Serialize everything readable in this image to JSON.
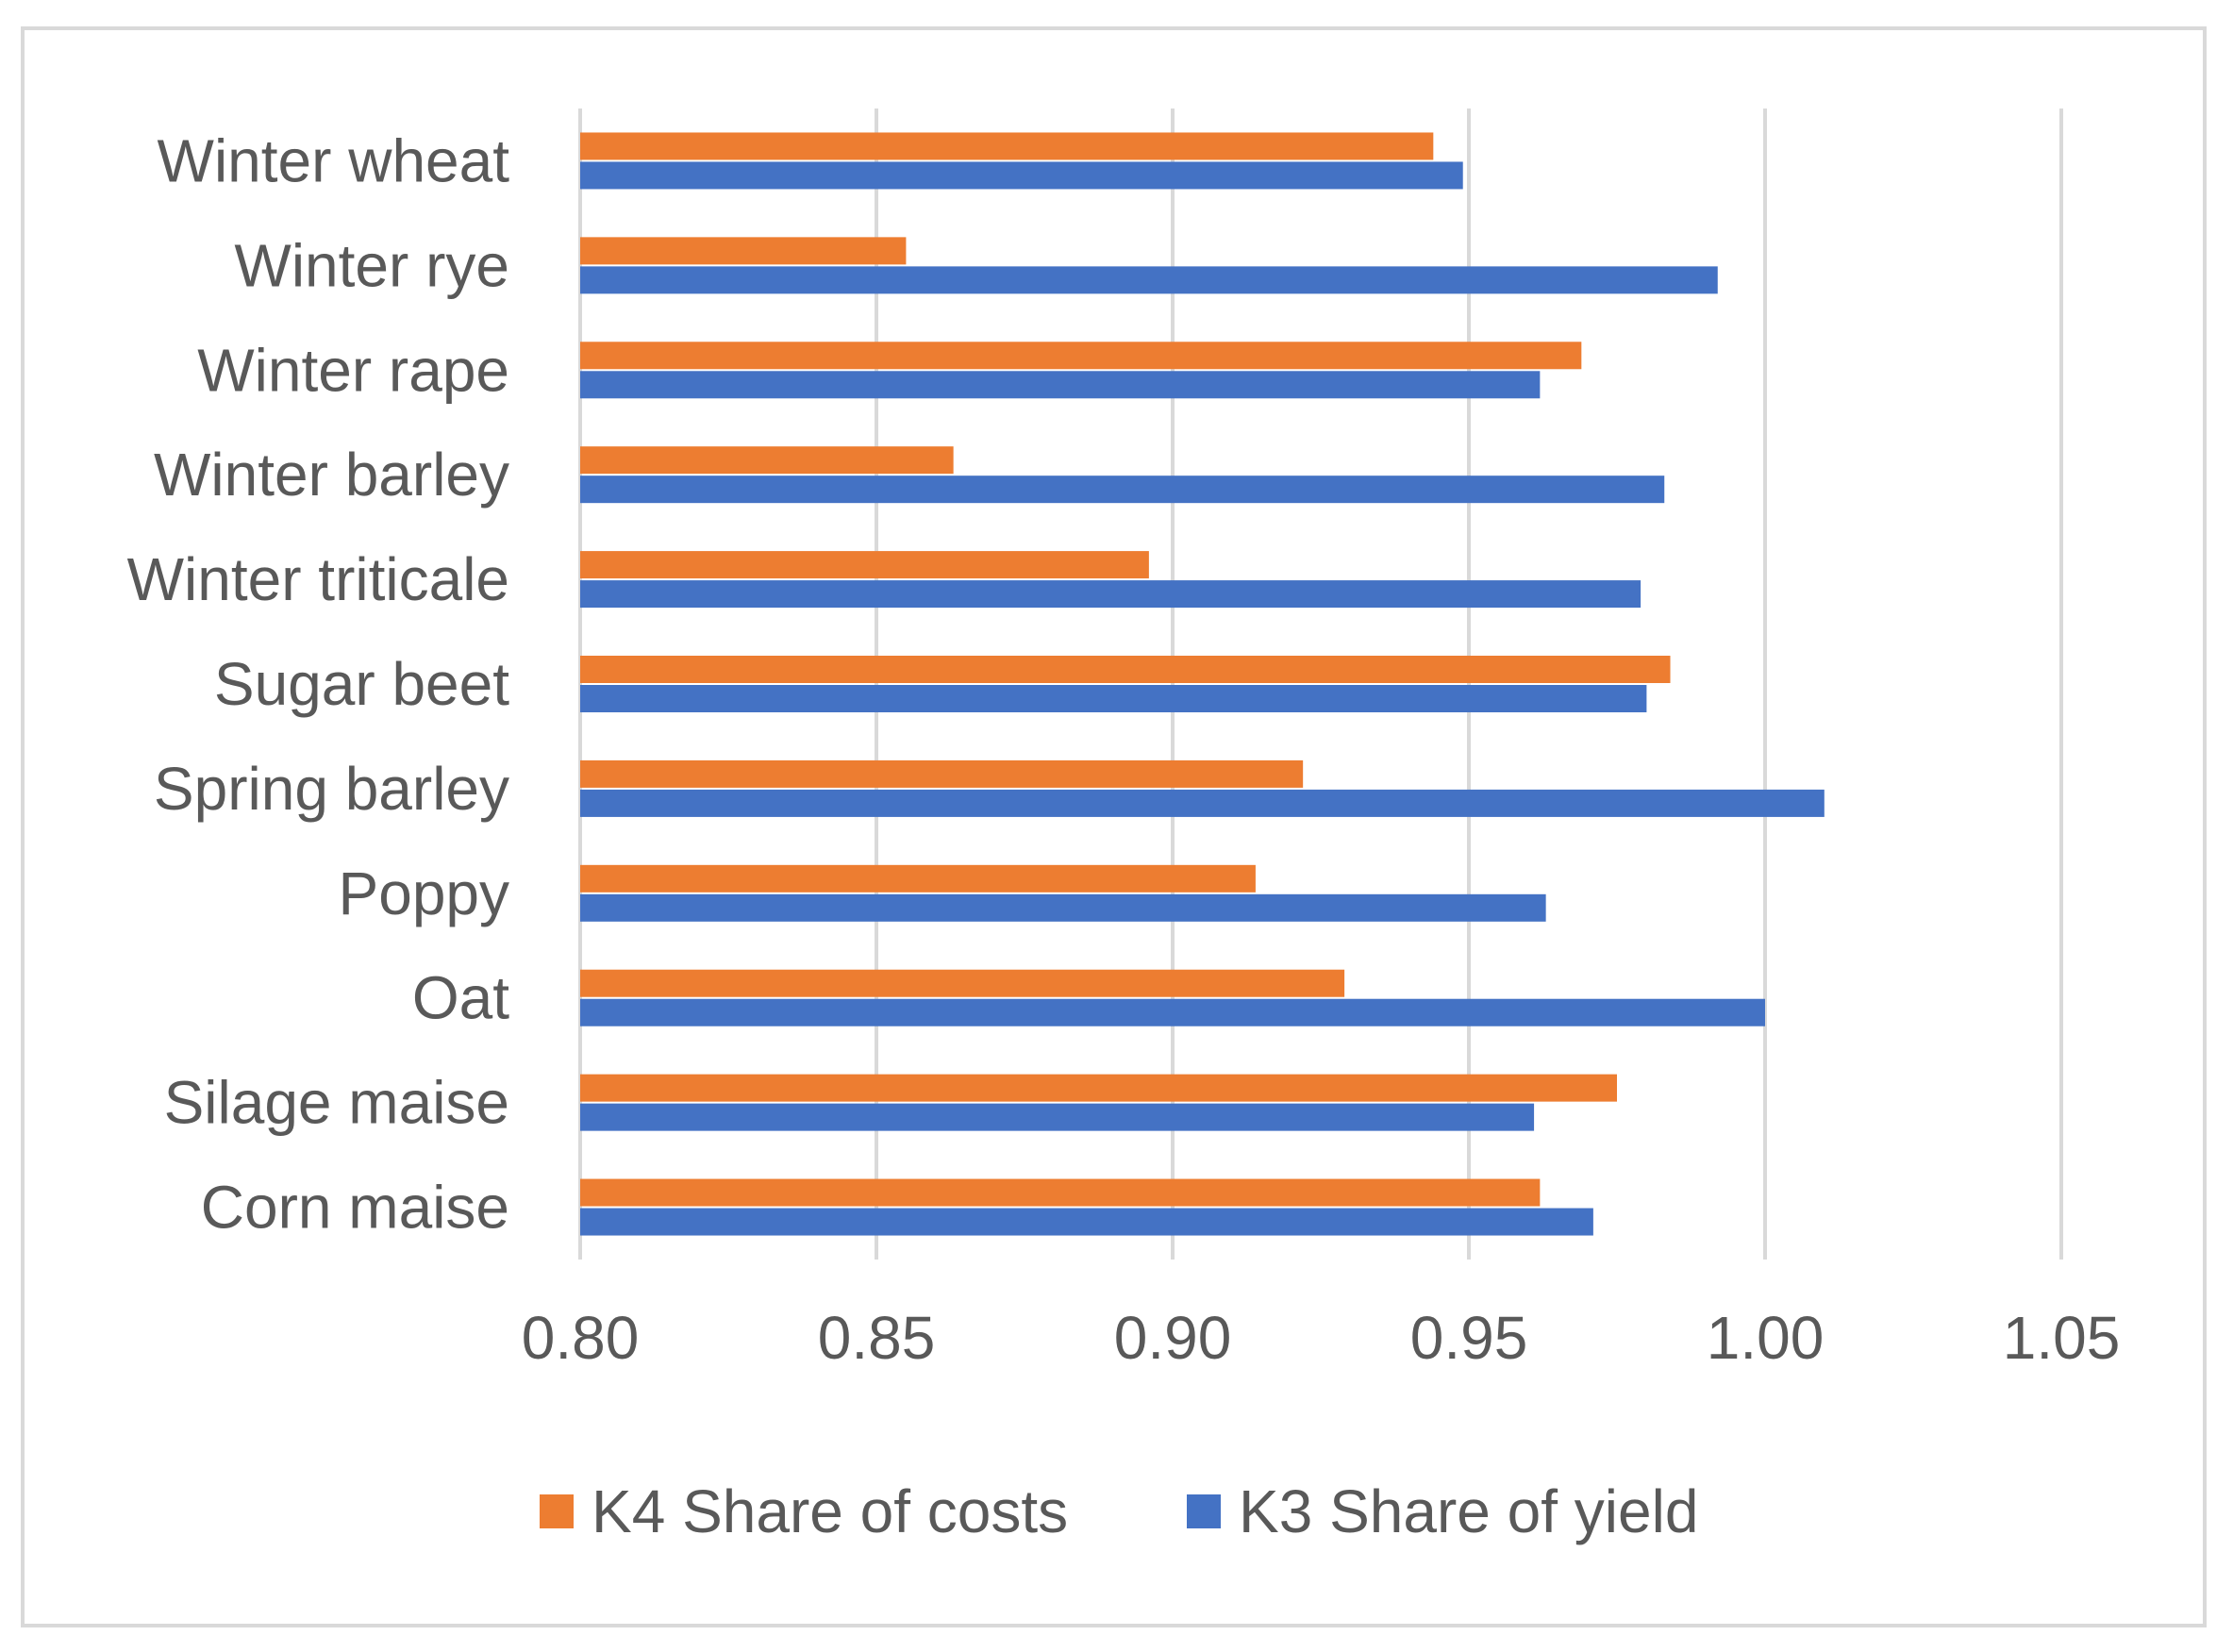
{
  "chart_data": {
    "type": "bar",
    "orientation": "horizontal",
    "title": "",
    "xlabel": "",
    "ylabel": "",
    "xlim": [
      0.8,
      1.05
    ],
    "ticks": [
      "0.80",
      "0.85",
      "0.90",
      "0.95",
      "1.00",
      "1.05"
    ],
    "tick_values": [
      0.8,
      0.85,
      0.9,
      0.95,
      1.0,
      1.05
    ],
    "grid": "vertical",
    "legend_position": "bottom",
    "categories": [
      "Winter wheat",
      "Winter rye",
      "Winter rape",
      "Winter barley",
      "Winter triticale",
      "Sugar beet",
      "Spring barley",
      "Poppy",
      "Oat",
      "Silage maise",
      "Corn maise"
    ],
    "series": [
      {
        "name": "K4 Share of costs",
        "color": "#ed7d31",
        "values": [
          0.944,
          0.855,
          0.969,
          0.863,
          0.896,
          0.984,
          0.922,
          0.914,
          0.929,
          0.975,
          0.962
        ]
      },
      {
        "name": "K3 Share of yield",
        "color": "#4472c4",
        "values": [
          0.949,
          0.992,
          0.962,
          0.983,
          0.979,
          0.98,
          1.01,
          0.963,
          1.0,
          0.961,
          0.971
        ]
      }
    ]
  }
}
